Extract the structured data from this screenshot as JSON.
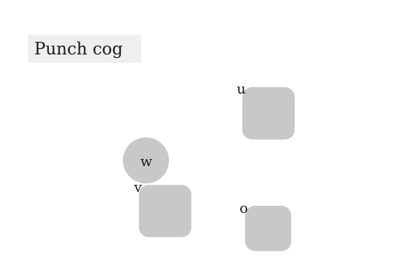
{
  "title": "Punch cog",
  "shapes": [
    {
      "id": "u",
      "label": "u",
      "kind": "rounded-square",
      "color": "#c8c8c8"
    },
    {
      "id": "w",
      "label": "w",
      "kind": "circle",
      "color": "#c8c8c8"
    },
    {
      "id": "v",
      "label": "v",
      "kind": "rounded-square",
      "color": "#c8c8c8"
    },
    {
      "id": "o",
      "label": "o",
      "kind": "rounded-square",
      "color": "#c8c8c8"
    }
  ],
  "colors": {
    "title_background": "#efefef",
    "shape_fill": "#c8c8c8",
    "background": "#ffffff"
  }
}
